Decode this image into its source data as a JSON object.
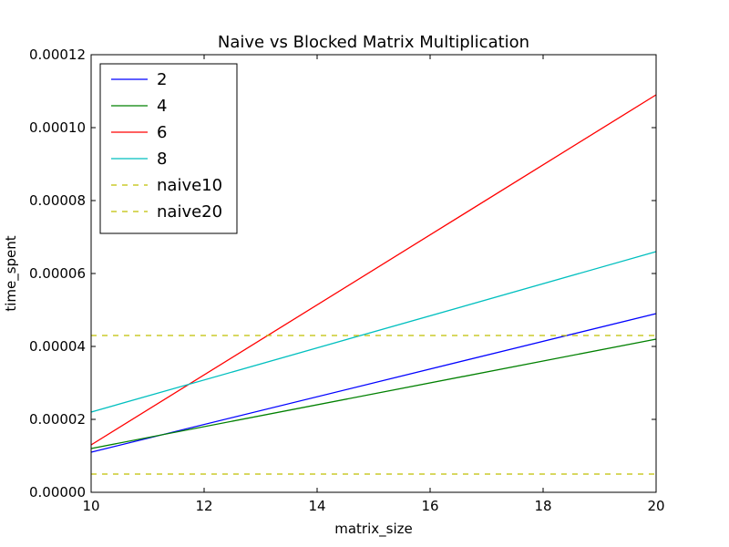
{
  "chart_data": {
    "type": "line",
    "title": "Naive vs Blocked Matrix Multiplication",
    "xlabel": "matrix_size",
    "ylabel": "time_spent",
    "xlim": [
      10,
      20
    ],
    "ylim": [
      0,
      0.00012
    ],
    "x_ticks": [
      "10",
      "12",
      "14",
      "16",
      "18",
      "20"
    ],
    "y_ticks": [
      "0.00000",
      "0.00002",
      "0.00004",
      "0.00006",
      "0.00008",
      "0.00010",
      "0.00012"
    ],
    "grid": false,
    "legend_position": "top-left",
    "series": [
      {
        "name": "2",
        "color": "#0000ff",
        "style": "solid",
        "x": [
          10,
          20
        ],
        "y": [
          1.1e-05,
          4.9e-05
        ]
      },
      {
        "name": "4",
        "color": "#008000",
        "style": "solid",
        "x": [
          10,
          20
        ],
        "y": [
          1.2e-05,
          4.2e-05
        ]
      },
      {
        "name": "6",
        "color": "#ff0000",
        "style": "solid",
        "x": [
          10,
          20
        ],
        "y": [
          1.3e-05,
          0.000109
        ]
      },
      {
        "name": "8",
        "color": "#00bfbf",
        "style": "solid",
        "x": [
          10,
          20
        ],
        "y": [
          2.2e-05,
          6.6e-05
        ]
      },
      {
        "name": "naive10",
        "color": "#bfbf00",
        "style": "dashed",
        "x": [
          10,
          20
        ],
        "y": [
          5e-06,
          5e-06
        ]
      },
      {
        "name": "naive20",
        "color": "#bfbf00",
        "style": "dashed",
        "x": [
          10,
          20
        ],
        "y": [
          4.3e-05,
          4.3e-05
        ]
      }
    ]
  }
}
